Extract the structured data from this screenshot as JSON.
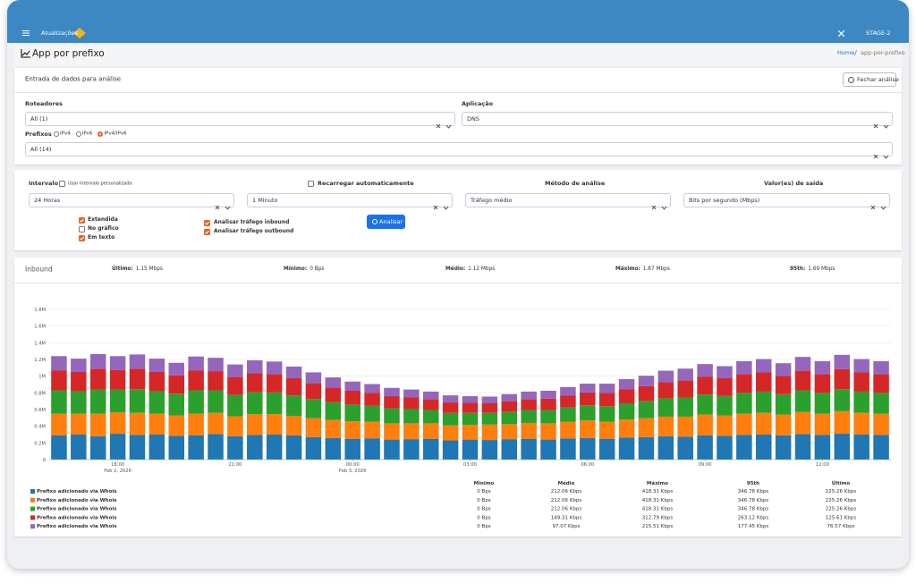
{
  "header": {
    "app_name": "Atualizações",
    "environment": "STAGE-2"
  },
  "page": {
    "title": "App por prefixo",
    "breadcrumb": [
      "Home",
      "app-por-prefixo"
    ]
  },
  "input_card": {
    "title": "Entrada de dados para análise",
    "close_button": "Fechar análise",
    "routers": {
      "label": "Roteadores",
      "value": "All (1)"
    },
    "application": {
      "label": "Aplicação",
      "value": "DNS"
    },
    "prefixes": {
      "label": "Prefixos",
      "options": [
        "IPv4",
        "IPv6",
        "IPv4/IPv6"
      ],
      "selected": 2,
      "value": "All (14)"
    }
  },
  "options_card": {
    "interval": {
      "label": "Intervalo",
      "custom_label": "Usar intervalo personalizado",
      "custom_checked": false,
      "value": "24 Horas"
    },
    "refresh": {
      "label": "Recarregar automaticamente",
      "checked": false,
      "value": "1 Minuto"
    },
    "method": {
      "label": "Método de análise",
      "value": "Tráfego médio"
    },
    "output": {
      "label": "Valor(es) de saída",
      "value": "Bits por segundo (Mbps)"
    },
    "display_options": [
      {
        "label": "Extendida",
        "checked": true
      },
      {
        "label": "No gráfico",
        "checked": false
      },
      {
        "label": "Em texto",
        "checked": true
      }
    ],
    "traffic_options": [
      {
        "label": "Analisar tráfego inbound",
        "checked": true
      },
      {
        "label": "Analisar tráfego outbound",
        "checked": true
      }
    ],
    "analyze_button": "Analisar"
  },
  "results": {
    "direction": "Inbound",
    "stats": [
      {
        "label": "Último:",
        "value": "1.15 Mbps"
      },
      {
        "label": "Mínimo:",
        "value": "0 Bps"
      },
      {
        "label": "Médio:",
        "value": "1.12 Mbps"
      },
      {
        "label": "Máximo:",
        "value": "1.87 Mbps"
      },
      {
        "label": "95th:",
        "value": "1.69 Mbps"
      }
    ],
    "summary": {
      "columns": [
        "Mínimo",
        "Médio",
        "Máximo",
        "95th",
        "Último"
      ],
      "rows": [
        [
          "0 Bps",
          "212.06 Kbps",
          "418.31 Kbps",
          "346.78 Kbps",
          "225.26 Kbps"
        ],
        [
          "0 Bps",
          "212.06 Kbps",
          "418.31 Kbps",
          "346.78 Kbps",
          "225.26 Kbps"
        ],
        [
          "0 Bps",
          "212.06 Kbps",
          "418.31 Kbps",
          "346.78 Kbps",
          "225.26 Kbps"
        ],
        [
          "0 Bps",
          "149.31 Kbps",
          "312.79 Kbps",
          "263.12 Kbps",
          "125.61 Kbps"
        ],
        [
          "0 Bps",
          "97.07 Kbps",
          "215.51 Kbps",
          "177.45 Kbps",
          "76.57 Kbps"
        ]
      ]
    }
  },
  "chart_data": {
    "type": "stacked_bar",
    "grid": true,
    "categories": [
      null,
      null,
      null,
      "18:00",
      null,
      null,
      null,
      null,
      null,
      "21:00",
      null,
      null,
      null,
      null,
      null,
      "00:00",
      null,
      null,
      null,
      null,
      null,
      "03:00",
      null,
      null,
      null,
      null,
      null,
      "06:00",
      null,
      null,
      null,
      null,
      null,
      "09:00",
      null,
      null,
      null,
      null,
      null,
      "12:00",
      null,
      null,
      null
    ],
    "category_dates": [
      null,
      null,
      null,
      "Feb 2, 2026",
      null,
      null,
      null,
      null,
      null,
      null,
      null,
      null,
      null,
      null,
      null,
      "Feb 3, 2026",
      null,
      null,
      null,
      null,
      null,
      null,
      null,
      null,
      null,
      null,
      null,
      null,
      null,
      null,
      null,
      null,
      null,
      null,
      null,
      null,
      null,
      null,
      null,
      null,
      null,
      null,
      null
    ],
    "ylim": [
      0,
      1800000
    ],
    "yticks": [
      0,
      {
        "value": 200000,
        "label": "0.2M"
      },
      {
        "value": 400000,
        "label": "0.4M"
      },
      {
        "value": 600000,
        "label": "0.6M"
      },
      {
        "value": 800000,
        "label": "0.8M"
      },
      {
        "value": 1000000,
        "label": "1M"
      },
      {
        "value": 1200000,
        "label": "1.2M"
      },
      {
        "value": 1400000,
        "label": "1.4M"
      },
      {
        "value": 1600000,
        "label": "1.6M"
      },
      {
        "value": 1800000,
        "label": "1.8M"
      }
    ],
    "series": [
      {
        "name": "Prefixo adicionado via Whois",
        "color": "#1f77b4",
        "values": [
          290000,
          300000,
          280000,
          310000,
          295000,
          300000,
          285000,
          290000,
          305000,
          280000,
          295000,
          300000,
          290000,
          270000,
          260000,
          250000,
          255000,
          240000,
          245000,
          250000,
          230000,
          240000,
          235000,
          245000,
          250000,
          240000,
          255000,
          260000,
          250000,
          265000,
          270000,
          280000,
          275000,
          290000,
          285000,
          295000,
          300000,
          290000,
          305000,
          295000,
          310000,
          300000,
          295000
        ]
      },
      {
        "name": "Prefixo adicionado via Whois",
        "color": "#ff7f0e",
        "values": [
          260000,
          250000,
          270000,
          255000,
          265000,
          250000,
          245000,
          260000,
          255000,
          240000,
          250000,
          245000,
          235000,
          225000,
          215000,
          210000,
          200000,
          195000,
          190000,
          185000,
          180000,
          175000,
          185000,
          180000,
          190000,
          195000,
          200000,
          210000,
          205000,
          215000,
          225000,
          235000,
          240000,
          250000,
          245000,
          255000,
          260000,
          250000,
          265000,
          255000,
          270000,
          260000,
          255000
        ]
      },
      {
        "name": "Prefixo adicionado via Whois",
        "color": "#2ca02c",
        "values": [
          280000,
          270000,
          290000,
          275000,
          285000,
          270000,
          260000,
          280000,
          270000,
          255000,
          265000,
          260000,
          245000,
          230000,
          215000,
          200000,
          190000,
          180000,
          170000,
          160000,
          150000,
          145000,
          140000,
          150000,
          155000,
          160000,
          170000,
          180000,
          185000,
          195000,
          205000,
          220000,
          230000,
          240000,
          235000,
          250000,
          255000,
          245000,
          260000,
          250000,
          265000,
          255000,
          250000
        ]
      },
      {
        "name": "Prefixo adicionado via Whois",
        "color": "#d62728",
        "values": [
          240000,
          230000,
          250000,
          235000,
          245000,
          230000,
          220000,
          240000,
          230000,
          215000,
          225000,
          220000,
          205000,
          190000,
          175000,
          165000,
          155000,
          145000,
          140000,
          130000,
          125000,
          120000,
          115000,
          125000,
          130000,
          135000,
          145000,
          155000,
          160000,
          170000,
          180000,
          195000,
          205000,
          215000,
          210000,
          225000,
          230000,
          220000,
          235000,
          225000,
          240000,
          230000,
          225000
        ]
      },
      {
        "name": "Prefixo adicionado via Whois",
        "color": "#9467bd",
        "values": [
          170000,
          160000,
          175000,
          165000,
          170000,
          160000,
          150000,
          165000,
          160000,
          150000,
          155000,
          150000,
          140000,
          130000,
          120000,
          110000,
          105000,
          100000,
          95000,
          90000,
          85000,
          80000,
          80000,
          85000,
          90000,
          95000,
          100000,
          105000,
          110000,
          120000,
          125000,
          135000,
          140000,
          150000,
          145000,
          155000,
          160000,
          150000,
          165000,
          155000,
          170000,
          160000,
          155000
        ]
      }
    ]
  }
}
